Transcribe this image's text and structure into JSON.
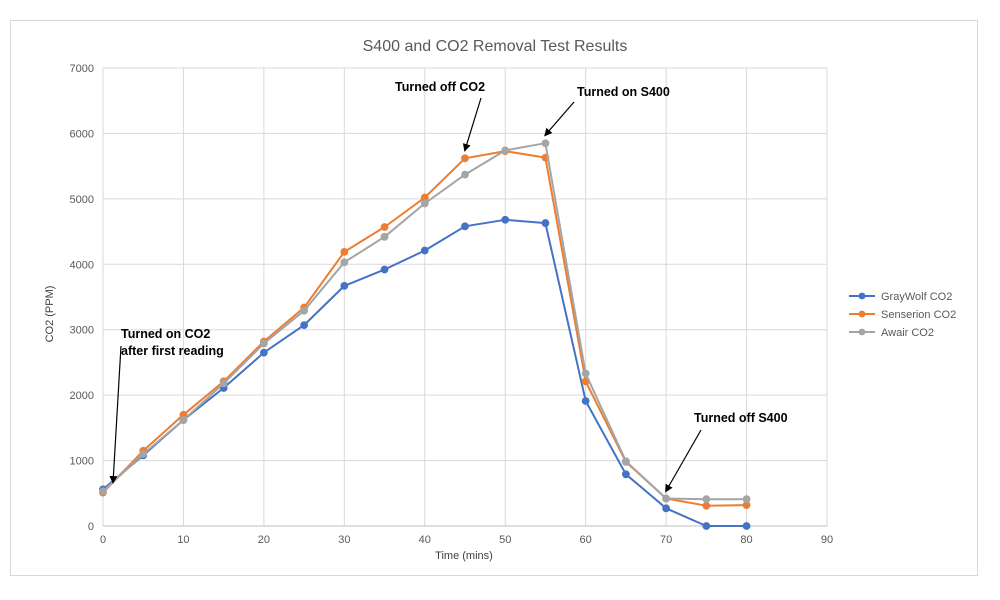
{
  "chart_data": {
    "type": "line",
    "title": "S400 and CO2 Removal Test Results",
    "xlabel": "Time (mins)",
    "ylabel": "CO2 (PPM)",
    "xlim": [
      0,
      90
    ],
    "ylim": [
      0,
      7000
    ],
    "x_ticks": [
      0,
      10,
      20,
      30,
      40,
      50,
      60,
      70,
      80,
      90
    ],
    "y_ticks": [
      0,
      1000,
      2000,
      3000,
      4000,
      5000,
      6000,
      7000
    ],
    "grid": "vertical and horizontal",
    "legend_position": "right",
    "x": [
      0,
      5,
      10,
      15,
      20,
      25,
      30,
      35,
      40,
      45,
      50,
      55,
      60,
      65,
      70,
      75,
      80
    ],
    "series": [
      {
        "name": "GrayWolf CO2",
        "color": "#4472c4",
        "values": [
          560,
          1080,
          1620,
          2110,
          2650,
          3070,
          3670,
          3920,
          4210,
          4580,
          4680,
          4630,
          1910,
          790,
          270,
          0,
          0
        ]
      },
      {
        "name": "Senserion CO2",
        "color": "#ed7d31",
        "values": [
          510,
          1150,
          1700,
          2210,
          2820,
          3340,
          4190,
          4570,
          5020,
          5620,
          5730,
          5630,
          2210,
          980,
          420,
          310,
          320
        ]
      },
      {
        "name": "Awair CO2",
        "color": "#a5a5a5",
        "values": [
          530,
          1100,
          1620,
          2180,
          2790,
          3290,
          4030,
          4420,
          4930,
          5370,
          5740,
          5850,
          2330,
          990,
          420,
          410,
          410
        ]
      }
    ],
    "annotations": [
      {
        "lines": [
          "Turned on CO2",
          "after first reading"
        ],
        "target": [
          1,
          550
        ]
      },
      {
        "lines": [
          "Turned off CO2"
        ],
        "target": [
          45,
          5640
        ]
      },
      {
        "lines": [
          "Turned on S400"
        ],
        "target": [
          55,
          5870
        ]
      },
      {
        "lines": [
          "Turned off S400"
        ],
        "target": [
          70,
          430
        ]
      }
    ]
  }
}
